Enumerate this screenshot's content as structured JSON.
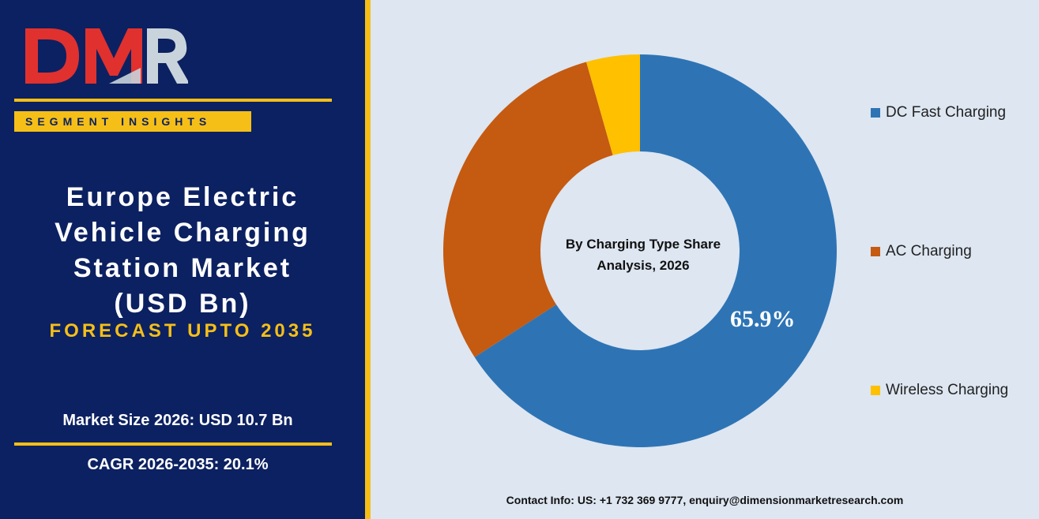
{
  "brand": {
    "logo_text": "DMR",
    "badge": "SEGMENT INSIGHTS"
  },
  "title_lines": [
    "Europe Electric",
    "Vehicle Charging",
    "Station Market",
    "(USD Bn)"
  ],
  "forecast": "FORECAST UPTO 2035",
  "stats": {
    "market_size": "Market Size 2026: USD 10.7 Bn",
    "cagr": "CAGR 2026-2035: 20.1%"
  },
  "contact": "Contact Info: US: +1 732 369 9777, enquiry@dimensionmarketresearch.com",
  "colors": {
    "navy": "#0c2161",
    "gold": "#f5bf18",
    "panel": "#dde6f1"
  },
  "chart_data": {
    "type": "pie",
    "title": "By Charging Type Share Analysis, 2026",
    "donut": true,
    "categories": [
      "DC Fast Charging",
      "AC Charging",
      "Wireless Charging"
    ],
    "values": [
      65.9,
      29.7,
      4.4
    ],
    "colors": [
      "#2e74b5",
      "#c55a11",
      "#ffc000"
    ],
    "data_labels": [
      "65.9%"
    ],
    "legend_position": "right"
  }
}
